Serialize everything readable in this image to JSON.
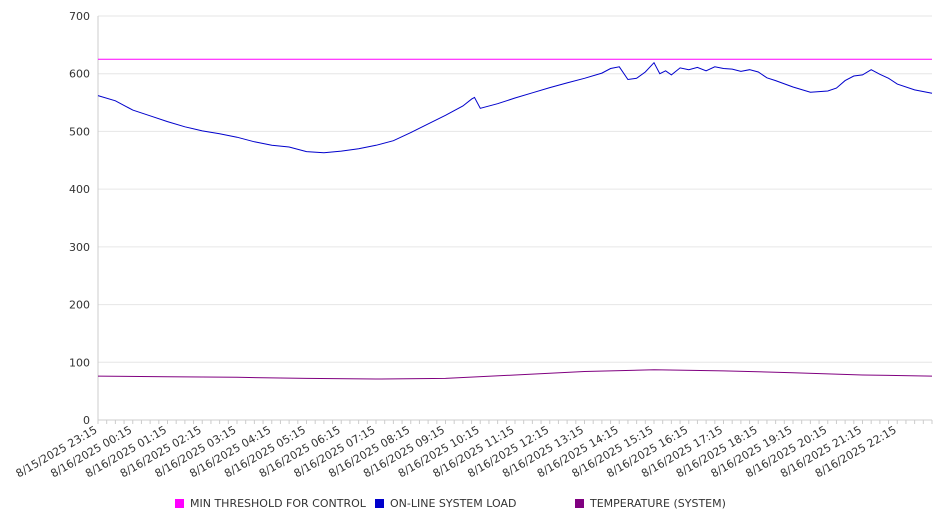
{
  "chart_data": {
    "type": "line",
    "ylim": [
      0,
      700
    ],
    "y_ticks": [
      0,
      100,
      200,
      300,
      400,
      500,
      600,
      700
    ],
    "x_tick_labels": [
      "8/15/2025 23:15",
      "8/16/2025 00:15",
      "8/16/2025 01:15",
      "8/16/2025 02:15",
      "8/16/2025 03:15",
      "8/16/2025 04:15",
      "8/16/2025 05:15",
      "8/16/2025 06:15",
      "8/16/2025 07:15",
      "8/16/2025 08:15",
      "8/16/2025 09:15",
      "8/16/2025 10:15",
      "8/16/2025 11:15",
      "8/16/2025 12:15",
      "8/16/2025 13:15",
      "8/16/2025 14:15",
      "8/16/2025 15:15",
      "8/16/2025 16:15",
      "8/16/2025 17:15",
      "8/16/2025 18:15",
      "8/16/2025 19:15",
      "8/16/2025 20:15",
      "8/16/2025 21:15",
      "8/16/2025 22:15"
    ],
    "grid": true,
    "legend_position": "bottom",
    "series": [
      {
        "name": "MIN THRESHOLD FOR CONTROL",
        "color": "#ff00ff",
        "x": [
          "8/15/2025 23:15",
          "8/16/2025 23:15"
        ],
        "y": [
          625,
          625
        ]
      },
      {
        "name": "ON-LINE SYSTEM LOAD",
        "color": "#0000cc",
        "x": [
          "8/15/2025 23:15",
          "8/15/2025 23:45",
          "8/16/2025 00:15",
          "8/16/2025 00:45",
          "8/16/2025 01:15",
          "8/16/2025 01:45",
          "8/16/2025 02:15",
          "8/16/2025 02:45",
          "8/16/2025 03:15",
          "8/16/2025 03:45",
          "8/16/2025 04:15",
          "8/16/2025 04:45",
          "8/16/2025 05:15",
          "8/16/2025 05:45",
          "8/16/2025 06:15",
          "8/16/2025 06:45",
          "8/16/2025 07:15",
          "8/16/2025 07:45",
          "8/16/2025 08:15",
          "8/16/2025 08:45",
          "8/16/2025 09:15",
          "8/16/2025 09:45",
          "8/16/2025 10:00",
          "8/16/2025 10:05",
          "8/16/2025 10:15",
          "8/16/2025 10:45",
          "8/16/2025 11:15",
          "8/16/2025 11:45",
          "8/16/2025 12:15",
          "8/16/2025 12:45",
          "8/16/2025 13:15",
          "8/16/2025 13:45",
          "8/16/2025 14:00",
          "8/16/2025 14:15",
          "8/16/2025 14:30",
          "8/16/2025 14:45",
          "8/16/2025 15:00",
          "8/16/2025 15:15",
          "8/16/2025 15:25",
          "8/16/2025 15:35",
          "8/16/2025 15:45",
          "8/16/2025 16:00",
          "8/16/2025 16:15",
          "8/16/2025 16:30",
          "8/16/2025 16:45",
          "8/16/2025 17:00",
          "8/16/2025 17:15",
          "8/16/2025 17:30",
          "8/16/2025 17:45",
          "8/16/2025 18:00",
          "8/16/2025 18:15",
          "8/16/2025 18:30",
          "8/16/2025 18:45",
          "8/16/2025 19:15",
          "8/16/2025 19:45",
          "8/16/2025 20:15",
          "8/16/2025 20:30",
          "8/16/2025 20:45",
          "8/16/2025 21:00",
          "8/16/2025 21:15",
          "8/16/2025 21:30",
          "8/16/2025 21:45",
          "8/16/2025 22:00",
          "8/16/2025 22:15",
          "8/16/2025 22:45",
          "8/16/2025 23:15"
        ],
        "y": [
          562,
          553,
          537,
          527,
          517,
          508,
          501,
          496,
          490,
          482,
          476,
          473,
          465,
          463,
          466,
          470,
          476,
          484,
          498,
          513,
          528,
          544,
          556,
          559,
          540,
          548,
          558,
          567,
          576,
          584,
          592,
          601,
          609,
          612,
          590,
          592,
          603,
          619,
          600,
          605,
          598,
          610,
          607,
          611,
          605,
          612,
          609,
          608,
          604,
          607,
          603,
          593,
          588,
          577,
          568,
          570,
          575,
          588,
          596,
          598,
          607,
          599,
          592,
          582,
          572,
          566
        ]
      },
      {
        "name": "TEMPERATURE (SYSTEM)",
        "color": "#800080",
        "x": [
          "8/15/2025 23:15",
          "8/16/2025 01:15",
          "8/16/2025 03:15",
          "8/16/2025 05:15",
          "8/16/2025 07:15",
          "8/16/2025 09:15",
          "8/16/2025 11:15",
          "8/16/2025 13:15",
          "8/16/2025 15:15",
          "8/16/2025 17:15",
          "8/16/2025 19:15",
          "8/16/2025 21:15",
          "8/16/2025 23:15"
        ],
        "y": [
          76,
          75,
          74,
          72,
          71,
          72,
          78,
          84,
          87,
          85,
          82,
          78,
          76
        ]
      }
    ]
  }
}
